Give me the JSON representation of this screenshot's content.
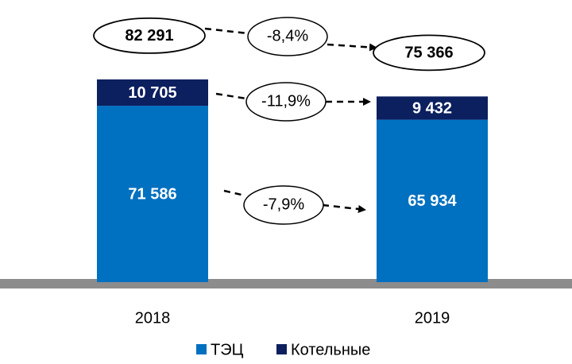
{
  "chart_data": {
    "type": "bar",
    "stacked": true,
    "categories": [
      "2018",
      "2019"
    ],
    "series": [
      {
        "name": "ТЭЦ",
        "color": "#0070c0",
        "values": [
          71586,
          65934
        ],
        "value_labels": [
          "71 586",
          "65 934"
        ]
      },
      {
        "name": "Котельные",
        "color": "#0c1f5e",
        "values": [
          10705,
          9432
        ],
        "value_labels": [
          "10 705",
          "9 432"
        ]
      }
    ],
    "totals": [
      82291,
      75366
    ],
    "total_labels": [
      "82 291",
      "75 366"
    ],
    "annotations": [
      "-8,4%",
      "-11,9%",
      "-7,9%"
    ],
    "ylim": [
      0,
      100000
    ]
  }
}
